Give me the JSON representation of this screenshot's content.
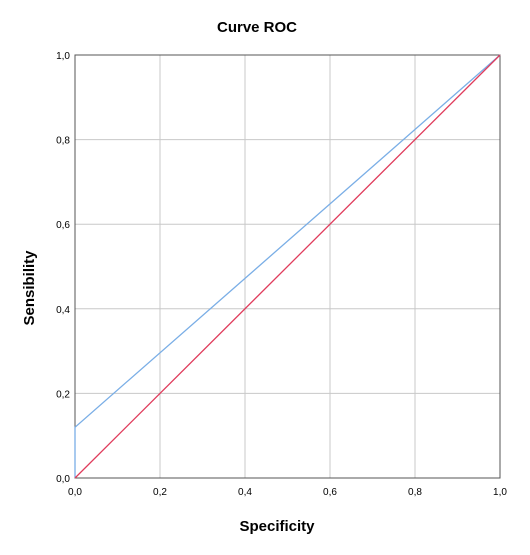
{
  "chart_data": {
    "type": "line",
    "title": "Curve ROC",
    "xlabel": "Specificity",
    "ylabel": "Sensibility",
    "xlim": [
      0,
      1
    ],
    "ylim": [
      0,
      1
    ],
    "grid": true,
    "x_ticks": [
      "0,0",
      "0,2",
      "0,4",
      "0,6",
      "0,8",
      "1,0"
    ],
    "y_ticks": [
      "0,0",
      "0,2",
      "0,4",
      "0,6",
      "0,8",
      "1,0"
    ],
    "series": [
      {
        "color": "#7aaee6",
        "x": [
          0,
          0,
          1
        ],
        "y": [
          0,
          0.12,
          1
        ]
      },
      {
        "color": "#e03c5c",
        "x": [
          0,
          1
        ],
        "y": [
          0,
          1
        ]
      }
    ]
  }
}
